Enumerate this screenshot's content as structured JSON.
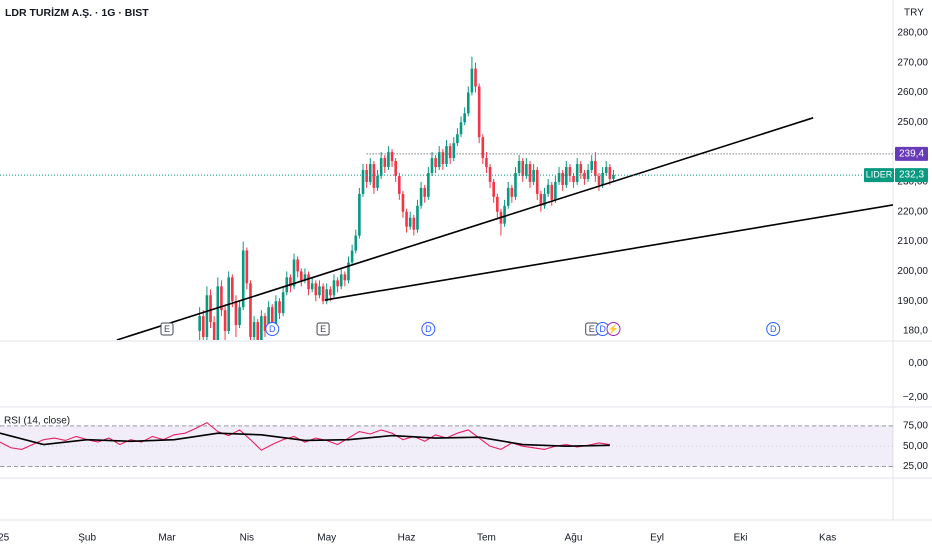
{
  "chart_data": {
    "type": "candlestick",
    "title": "LDR TURİZM A.Ş. · 1G · BIST",
    "currency": "TRY",
    "ticker": "LIDER",
    "up_color": "#089981",
    "down_color": "#f23645",
    "xlim": [
      -46,
      200
    ],
    "xticks": [
      {
        "value": -45,
        "label": "25"
      },
      {
        "value": -22,
        "label": "Şub"
      },
      {
        "value": 0,
        "label": "Mar"
      },
      {
        "value": 22,
        "label": "Nis"
      },
      {
        "value": 44,
        "label": "May"
      },
      {
        "value": 66,
        "label": "Haz"
      },
      {
        "value": 88,
        "label": "Tem"
      },
      {
        "value": 112,
        "label": "Ağu"
      },
      {
        "value": 135,
        "label": "Eyl"
      },
      {
        "value": 158,
        "label": "Eki"
      },
      {
        "value": 182,
        "label": "Kas"
      }
    ],
    "ylim": [
      177,
      291
    ],
    "yticks": [
      {
        "value": 180,
        "label": "180,0"
      },
      {
        "value": 190,
        "label": "190,00"
      },
      {
        "value": 200,
        "label": "200,00"
      },
      {
        "value": 210,
        "label": "210,00"
      },
      {
        "value": 220,
        "label": "220,00"
      },
      {
        "value": 230,
        "label": "230,00"
      },
      {
        "value": 250,
        "label": "250,00"
      },
      {
        "value": 260,
        "label": "260,00"
      },
      {
        "value": 270,
        "label": "270,00"
      },
      {
        "value": 280,
        "label": "280,00"
      }
    ],
    "x": [
      9,
      10,
      11,
      12,
      13,
      14,
      15,
      16,
      17,
      18,
      19,
      20,
      21,
      22,
      23,
      24,
      25,
      26,
      27,
      28,
      29,
      30,
      31,
      32,
      33,
      34,
      35,
      36,
      37,
      38,
      39,
      40,
      41,
      42,
      43,
      44,
      45,
      46,
      47,
      48,
      49,
      50,
      51,
      52,
      53,
      54,
      55,
      56,
      57,
      58,
      59,
      60,
      61,
      62,
      63,
      64,
      65,
      66,
      67,
      68,
      69,
      70,
      71,
      72,
      73,
      74,
      75,
      76,
      77,
      78,
      79,
      80,
      81,
      82,
      83,
      84,
      85,
      86,
      87,
      88,
      89,
      90,
      91,
      92,
      93,
      94,
      95,
      96,
      97,
      98,
      99,
      100,
      101,
      102,
      103,
      104,
      105,
      106,
      107,
      108,
      109,
      110,
      111,
      112,
      113,
      114,
      115,
      116,
      117,
      118,
      119,
      120,
      121,
      122,
      123
    ],
    "ohlc": [
      [
        180,
        188,
        176,
        185
      ],
      [
        185,
        187,
        175,
        178
      ],
      [
        178,
        195,
        177,
        192
      ],
      [
        192,
        194,
        181,
        183
      ],
      [
        183,
        185,
        174,
        176
      ],
      [
        176,
        198,
        175,
        195
      ],
      [
        195,
        197,
        185,
        187
      ],
      [
        187,
        189,
        176,
        180
      ],
      [
        180,
        200,
        179,
        198
      ],
      [
        198,
        199,
        188,
        190
      ],
      [
        190,
        192,
        178,
        182
      ],
      [
        182,
        190,
        181,
        188
      ],
      [
        188,
        210,
        187,
        207
      ],
      [
        207,
        208,
        194,
        196
      ],
      [
        196,
        197,
        175,
        178
      ],
      [
        178,
        185,
        176,
        183
      ],
      [
        183,
        184,
        174,
        176
      ],
      [
        176,
        187,
        175,
        185
      ],
      [
        185,
        186,
        178,
        180
      ],
      [
        180,
        190,
        179,
        188
      ],
      [
        188,
        189,
        180,
        182
      ],
      [
        182,
        192,
        181,
        190
      ],
      [
        190,
        191,
        184,
        186
      ],
      [
        186,
        195,
        185,
        193
      ],
      [
        193,
        200,
        192,
        198
      ],
      [
        198,
        199,
        193,
        195
      ],
      [
        195,
        206,
        194,
        204
      ],
      [
        204,
        205,
        198,
        200
      ],
      [
        200,
        201,
        195,
        197
      ],
      [
        197,
        201,
        196,
        199
      ],
      [
        199,
        200,
        192,
        194
      ],
      [
        194,
        198,
        193,
        196
      ],
      [
        196,
        197,
        190,
        192
      ],
      [
        192,
        197,
        191,
        195
      ],
      [
        195,
        196,
        189,
        190
      ],
      [
        190,
        196,
        189,
        194
      ],
      [
        194,
        195,
        190,
        192
      ],
      [
        192,
        199,
        191,
        197
      ],
      [
        197,
        198,
        193,
        195
      ],
      [
        195,
        201,
        194,
        199
      ],
      [
        199,
        200,
        195,
        197
      ],
      [
        197,
        205,
        196,
        203
      ],
      [
        203,
        209,
        202,
        207
      ],
      [
        207,
        214,
        206,
        212
      ],
      [
        212,
        228,
        211,
        226
      ],
      [
        226,
        236,
        225,
        234
      ],
      [
        234,
        236,
        228,
        230
      ],
      [
        230,
        238,
        229,
        236
      ],
      [
        236,
        237,
        226,
        228
      ],
      [
        228,
        234,
        227,
        232
      ],
      [
        232,
        240,
        231,
        238
      ],
      [
        238,
        239,
        233,
        235
      ],
      [
        235,
        242,
        234,
        240
      ],
      [
        240,
        241,
        235,
        237
      ],
      [
        237,
        238,
        230,
        232
      ],
      [
        232,
        233,
        224,
        226
      ],
      [
        226,
        227,
        218,
        220
      ],
      [
        220,
        221,
        213,
        215
      ],
      [
        215,
        220,
        214,
        218
      ],
      [
        218,
        219,
        212,
        214
      ],
      [
        214,
        224,
        213,
        222
      ],
      [
        222,
        230,
        221,
        228
      ],
      [
        228,
        229,
        223,
        225
      ],
      [
        225,
        235,
        224,
        233
      ],
      [
        233,
        240,
        232,
        238
      ],
      [
        238,
        239,
        233,
        235
      ],
      [
        235,
        242,
        234,
        240
      ],
      [
        240,
        241,
        234,
        236
      ],
      [
        236,
        244,
        235,
        242
      ],
      [
        242,
        243,
        236,
        238
      ],
      [
        238,
        245,
        237,
        243
      ],
      [
        243,
        248,
        242,
        246
      ],
      [
        246,
        252,
        245,
        250
      ],
      [
        250,
        255,
        249,
        253
      ],
      [
        253,
        262,
        252,
        260
      ],
      [
        260,
        272,
        259,
        268
      ],
      [
        268,
        270,
        260,
        262
      ],
      [
        262,
        263,
        243,
        245
      ],
      [
        245,
        246,
        236,
        238
      ],
      [
        238,
        240,
        233,
        235
      ],
      [
        235,
        236,
        228,
        230
      ],
      [
        230,
        231,
        223,
        225
      ],
      [
        225,
        226,
        218,
        220
      ],
      [
        220,
        221,
        212,
        216
      ],
      [
        216,
        224,
        215,
        222
      ],
      [
        222,
        230,
        221,
        228
      ],
      [
        228,
        229,
        223,
        225
      ],
      [
        225,
        235,
        224,
        233
      ],
      [
        233,
        239,
        232,
        237
      ],
      [
        237,
        238,
        230,
        232
      ],
      [
        232,
        238,
        231,
        236
      ],
      [
        236,
        237,
        228,
        230
      ],
      [
        230,
        236,
        229,
        234
      ],
      [
        234,
        235,
        224,
        226
      ],
      [
        226,
        227,
        220,
        222
      ],
      [
        222,
        228,
        221,
        226
      ],
      [
        226,
        231,
        225,
        229
      ],
      [
        229,
        230,
        222,
        224
      ],
      [
        224,
        232,
        223,
        230
      ],
      [
        230,
        235,
        229,
        233
      ],
      [
        233,
        234,
        227,
        229
      ],
      [
        229,
        237,
        228,
        235
      ],
      [
        235,
        236,
        230,
        232
      ],
      [
        232,
        233,
        228,
        230
      ],
      [
        230,
        238,
        229,
        236
      ],
      [
        236,
        237,
        231,
        233
      ],
      [
        233,
        234,
        229,
        231
      ],
      [
        231,
        236,
        230,
        234
      ],
      [
        234,
        239,
        233,
        237
      ],
      [
        237,
        240,
        230,
        232
      ],
      [
        232,
        233,
        227,
        229
      ],
      [
        229,
        235,
        228,
        233
      ],
      [
        233,
        237,
        232,
        235
      ],
      [
        235,
        236,
        229,
        231
      ],
      [
        231,
        234,
        230,
        232.3
      ]
    ],
    "last_price": {
      "value": 232.3,
      "label": "232,3",
      "color": "#089981"
    },
    "level": {
      "value": 239.4,
      "label": "239,4",
      "from_x": 55,
      "color": "#673ab7"
    },
    "trendlines": [
      {
        "from": [
          -13.8,
          177.0
        ],
        "to": [
          178,
          251.5
        ]
      },
      {
        "from": [
          43.5,
          190.4
        ],
        "to": [
          200,
          222.3
        ]
      }
    ],
    "events": [
      {
        "x": 0,
        "label": "E",
        "shape": "box",
        "color": "#434651"
      },
      {
        "x": 29,
        "label": "D",
        "shape": "circle",
        "color": "#2962ff"
      },
      {
        "x": 43,
        "label": "E",
        "shape": "box",
        "color": "#434651"
      },
      {
        "x": 72,
        "label": "D",
        "shape": "circle",
        "color": "#2962ff"
      },
      {
        "x": 117,
        "label": "E",
        "shape": "box",
        "color": "#434651"
      },
      {
        "x": 120,
        "label": "D",
        "shape": "circle",
        "color": "#2962ff"
      },
      {
        "x": 123,
        "label": "⚡",
        "shape": "circle",
        "color": "#9c27b0"
      },
      {
        "x": 167,
        "label": "D",
        "shape": "circle",
        "color": "#2962ff"
      }
    ],
    "pane2": {
      "ylim": [
        -2.5,
        1.3
      ],
      "yticks": [
        {
          "value": 0,
          "label": "0,00"
        },
        {
          "value": -2,
          "label": "−2,00"
        }
      ]
    },
    "rsi": {
      "title": "RSI (14, close)",
      "ylim": [
        12,
        97
      ],
      "yticks": [
        {
          "value": 75,
          "label": "75,00"
        },
        {
          "value": 50,
          "label": "50,00"
        },
        {
          "value": 25,
          "label": "25,00"
        }
      ],
      "band": [
        25,
        75
      ],
      "band_color": "#7e57c2",
      "series": [
        {
          "color": "#e91e63",
          "x": [
            -46,
            -43,
            -40,
            -37,
            -34,
            -31,
            -28,
            -25,
            -22,
            -19,
            -16,
            -13,
            -10,
            -7,
            -4,
            -1,
            2,
            5,
            8,
            11,
            14,
            17,
            20,
            23,
            26,
            29,
            32,
            35,
            38,
            41,
            44,
            47,
            50,
            53,
            56,
            59,
            62,
            65,
            68,
            71,
            74,
            77,
            80,
            83,
            86,
            89,
            92,
            95,
            98,
            101,
            104,
            107,
            110,
            113,
            116,
            119,
            122
          ],
          "values": [
            55,
            48,
            46,
            52,
            58,
            60,
            57,
            62,
            58,
            55,
            60,
            52,
            58,
            55,
            62,
            58,
            64,
            66,
            72,
            79,
            68,
            63,
            70,
            58,
            45,
            52,
            58,
            62,
            55,
            60,
            57,
            52,
            60,
            68,
            65,
            70,
            66,
            58,
            62,
            56,
            64,
            60,
            66,
            70,
            60,
            50,
            46,
            54,
            50,
            48,
            46,
            50,
            52,
            49,
            51,
            54,
            52
          ]
        },
        {
          "color": "#000000",
          "x": [
            -46,
            -34,
            -22,
            -10,
            2,
            14,
            26,
            38,
            50,
            62,
            74,
            86,
            98,
            110,
            122
          ],
          "values": [
            66,
            52,
            58,
            56,
            58,
            66,
            64,
            57,
            58,
            63,
            60,
            61,
            52,
            50,
            51
          ]
        }
      ]
    }
  }
}
